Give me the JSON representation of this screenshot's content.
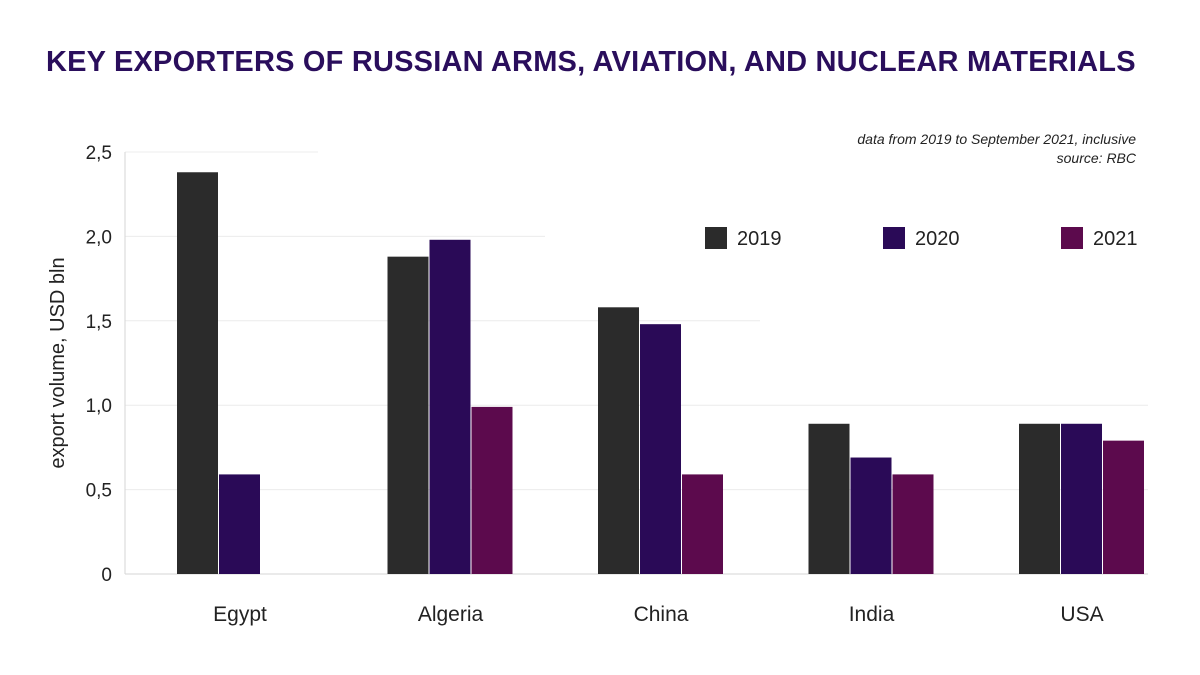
{
  "header": {
    "title": "KEY EXPORTERS OF RUSSIAN ARMS, AVIATION, AND NUCLEAR MATERIALS",
    "note_range": "data from 2019 to September 2021, inclusive",
    "note_source": "source: RBC"
  },
  "chart_data": {
    "type": "bar",
    "title": "KEY EXPORTERS OF RUSSIAN ARMS, AVIATION, AND NUCLEAR MATERIALS",
    "categories": [
      "Egypt",
      "Algeria",
      "China",
      "India",
      "USA"
    ],
    "series": [
      {
        "name": "2019",
        "color": "#2b2b2b",
        "values": [
          2.38,
          1.88,
          1.58,
          0.89,
          0.89
        ]
      },
      {
        "name": "2020",
        "color": "#2a0a57",
        "values": [
          0.59,
          1.98,
          1.48,
          0.69,
          0.89
        ]
      },
      {
        "name": "2021",
        "color": "#5c0a4d",
        "values": [
          null,
          0.99,
          0.59,
          0.59,
          0.79
        ]
      }
    ],
    "xlabel": "",
    "ylabel": "export volume, USD bln",
    "ylim": [
      0,
      2.5
    ],
    "yticks": [
      0,
      0.5,
      1.0,
      1.5,
      2.0,
      2.5
    ],
    "ytick_labels": [
      "0",
      "0,5",
      "1,0",
      "1,5",
      "2,0",
      "2,5"
    ],
    "grid": true,
    "legend_position": "top-right"
  }
}
